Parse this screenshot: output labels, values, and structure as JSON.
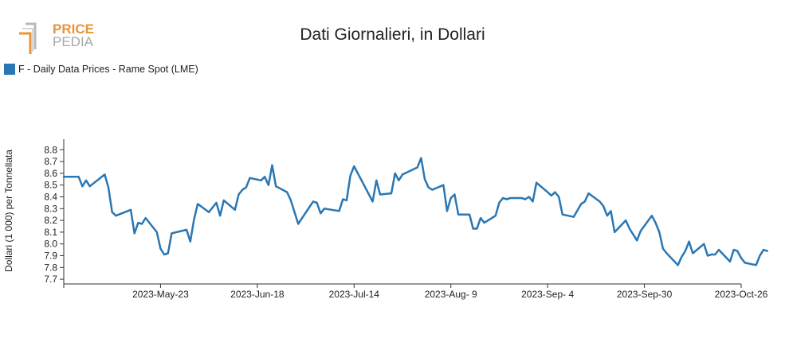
{
  "brand": {
    "line1": "PRICE",
    "line2": "PEDIA"
  },
  "chart_data": {
    "type": "line",
    "title": "Dati Giornalieri, in Dollari",
    "ylabel": "Dollari (1 000) per Tonnellata",
    "xlabel": "",
    "x_tick_labels": [
      "2023-May-23",
      "2023-Jun-18",
      "2023-Jul-14",
      "2023-Aug- 9",
      "2023-Sep- 4",
      "2023-Sep-30",
      "2023-Oct-26"
    ],
    "y_ticks": [
      7.7,
      7.8,
      7.9,
      8.0,
      8.1,
      8.2,
      8.3,
      8.4,
      8.5,
      8.6,
      8.7,
      8.8
    ],
    "y_tick_labels": [
      "7.7",
      "7.8",
      "7.9",
      "8.0",
      "8.1",
      "8.2",
      "8.3",
      "8.4",
      "8.5",
      "8.6",
      "8.7",
      "8.8"
    ],
    "xlim": [
      "2023-Apr-27",
      "2023-Oct-26"
    ],
    "ylim": [
      7.66,
      8.89
    ],
    "legend_position": "top-left",
    "grid": false,
    "series": [
      {
        "name": "F - Daily Data Prices - Rame Spot (LME)",
        "color": "#2a77b4",
        "points": [
          [
            "2023-04-27",
            8.57
          ],
          [
            "2023-04-28",
            8.57
          ],
          [
            "2023-05-01",
            8.57
          ],
          [
            "2023-05-02",
            8.49
          ],
          [
            "2023-05-03",
            8.54
          ],
          [
            "2023-05-04",
            8.49
          ],
          [
            "2023-05-08",
            8.59
          ],
          [
            "2023-05-09",
            8.48
          ],
          [
            "2023-05-10",
            8.27
          ],
          [
            "2023-05-11",
            8.24
          ],
          [
            "2023-05-15",
            8.29
          ],
          [
            "2023-05-16",
            8.09
          ],
          [
            "2023-05-17",
            8.18
          ],
          [
            "2023-05-18",
            8.17
          ],
          [
            "2023-05-19",
            8.22
          ],
          [
            "2023-05-22",
            8.1
          ],
          [
            "2023-05-23",
            7.96
          ],
          [
            "2023-05-24",
            7.91
          ],
          [
            "2023-05-25",
            7.92
          ],
          [
            "2023-05-26",
            8.09
          ],
          [
            "2023-05-30",
            8.12
          ],
          [
            "2023-05-31",
            8.02
          ],
          [
            "2023-06-01",
            8.21
          ],
          [
            "2023-06-02",
            8.34
          ],
          [
            "2023-06-05",
            8.27
          ],
          [
            "2023-06-07",
            8.35
          ],
          [
            "2023-06-08",
            8.24
          ],
          [
            "2023-06-09",
            8.37
          ],
          [
            "2023-06-12",
            8.29
          ],
          [
            "2023-06-13",
            8.42
          ],
          [
            "2023-06-14",
            8.46
          ],
          [
            "2023-06-15",
            8.48
          ],
          [
            "2023-06-16",
            8.56
          ],
          [
            "2023-06-19",
            8.54
          ],
          [
            "2023-06-20",
            8.57
          ],
          [
            "2023-06-21",
            8.5
          ],
          [
            "2023-06-22",
            8.67
          ],
          [
            "2023-06-23",
            8.49
          ],
          [
            "2023-06-26",
            8.44
          ],
          [
            "2023-06-27",
            8.37
          ],
          [
            "2023-06-29",
            8.17
          ],
          [
            "2023-07-03",
            8.36
          ],
          [
            "2023-07-04",
            8.35
          ],
          [
            "2023-07-05",
            8.26
          ],
          [
            "2023-07-06",
            8.3
          ],
          [
            "2023-07-10",
            8.28
          ],
          [
            "2023-07-11",
            8.38
          ],
          [
            "2023-07-12",
            8.37
          ],
          [
            "2023-07-13",
            8.58
          ],
          [
            "2023-07-14",
            8.66
          ],
          [
            "2023-07-17",
            8.48
          ],
          [
            "2023-07-19",
            8.36
          ],
          [
            "2023-07-20",
            8.54
          ],
          [
            "2023-07-21",
            8.42
          ],
          [
            "2023-07-24",
            8.43
          ],
          [
            "2023-07-25",
            8.6
          ],
          [
            "2023-07-26",
            8.54
          ],
          [
            "2023-07-27",
            8.59
          ],
          [
            "2023-07-31",
            8.65
          ],
          [
            "2023-08-01",
            8.73
          ],
          [
            "2023-08-02",
            8.55
          ],
          [
            "2023-08-03",
            8.48
          ],
          [
            "2023-08-04",
            8.46
          ],
          [
            "2023-08-07",
            8.5
          ],
          [
            "2023-08-08",
            8.28
          ],
          [
            "2023-08-09",
            8.39
          ],
          [
            "2023-08-10",
            8.42
          ],
          [
            "2023-08-11",
            8.25
          ],
          [
            "2023-08-14",
            8.25
          ],
          [
            "2023-08-15",
            8.13
          ],
          [
            "2023-08-16",
            8.13
          ],
          [
            "2023-08-17",
            8.22
          ],
          [
            "2023-08-18",
            8.18
          ],
          [
            "2023-08-21",
            8.24
          ],
          [
            "2023-08-22",
            8.35
          ],
          [
            "2023-08-23",
            8.39
          ],
          [
            "2023-08-24",
            8.38
          ],
          [
            "2023-08-25",
            8.39
          ],
          [
            "2023-08-28",
            8.39
          ],
          [
            "2023-08-29",
            8.38
          ],
          [
            "2023-08-30",
            8.4
          ],
          [
            "2023-08-31",
            8.36
          ],
          [
            "2023-09-01",
            8.52
          ],
          [
            "2023-09-04",
            8.44
          ],
          [
            "2023-09-05",
            8.41
          ],
          [
            "2023-09-06",
            8.44
          ],
          [
            "2023-09-07",
            8.4
          ],
          [
            "2023-09-08",
            8.25
          ],
          [
            "2023-09-11",
            8.23
          ],
          [
            "2023-09-13",
            8.34
          ],
          [
            "2023-09-14",
            8.36
          ],
          [
            "2023-09-15",
            8.43
          ],
          [
            "2023-09-18",
            8.36
          ],
          [
            "2023-09-19",
            8.32
          ],
          [
            "2023-09-20",
            8.24
          ],
          [
            "2023-09-21",
            8.28
          ],
          [
            "2023-09-22",
            8.1
          ],
          [
            "2023-09-25",
            8.2
          ],
          [
            "2023-09-26",
            8.13
          ],
          [
            "2023-09-27",
            8.08
          ],
          [
            "2023-09-28",
            8.03
          ],
          [
            "2023-09-29",
            8.11
          ],
          [
            "2023-10-02",
            8.24
          ],
          [
            "2023-10-03",
            8.18
          ],
          [
            "2023-10-04",
            8.1
          ],
          [
            "2023-10-05",
            7.96
          ],
          [
            "2023-10-06",
            7.92
          ],
          [
            "2023-10-09",
            7.82
          ],
          [
            "2023-10-10",
            7.89
          ],
          [
            "2023-10-11",
            7.94
          ],
          [
            "2023-10-12",
            8.02
          ],
          [
            "2023-10-13",
            7.92
          ],
          [
            "2023-10-16",
            8.0
          ],
          [
            "2023-10-17",
            7.9
          ],
          [
            "2023-10-18",
            7.91
          ],
          [
            "2023-10-19",
            7.91
          ],
          [
            "2023-10-20",
            7.95
          ],
          [
            "2023-10-23",
            7.85
          ],
          [
            "2023-10-24",
            7.95
          ],
          [
            "2023-10-25",
            7.94
          ],
          [
            "2023-10-26",
            7.88
          ],
          [
            "2023-10-27",
            7.84
          ],
          [
            "2023-10-30",
            7.82
          ],
          [
            "2023-10-31",
            7.9
          ],
          [
            "2023-11-01",
            7.95
          ],
          [
            "2023-11-02",
            7.94
          ]
        ]
      }
    ]
  }
}
